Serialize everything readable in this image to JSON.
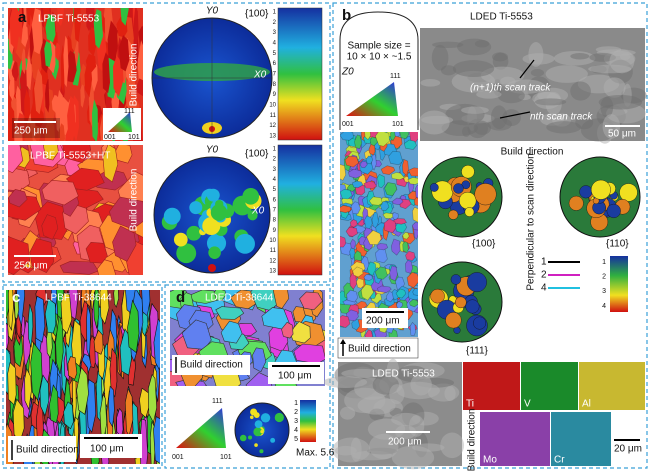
{
  "panel_a": {
    "label": "a",
    "map_1": {
      "title": "LPBF Ti-5553",
      "direction": "Build direction",
      "scale_bar": "250 μm",
      "ipf": [
        "111",
        "001",
        "101"
      ]
    },
    "pole_figure_1": {
      "y_axis": "Y0",
      "x_axis": "X0",
      "plane": "{100}"
    },
    "colorbar_1": [
      "1",
      "2",
      "3",
      "4",
      "5",
      "6",
      "7",
      "8",
      "9",
      "10",
      "11",
      "12",
      "13"
    ],
    "map_2": {
      "title": "LPBF Ti-5553+HT",
      "direction": "Build direction",
      "scale_bar": "250 μm"
    },
    "pole_figure_2": {
      "y_axis": "Y0",
      "x_axis": "X0",
      "plane": "{100}"
    },
    "colorbar_2": [
      "1",
      "2",
      "3",
      "4",
      "5",
      "6",
      "7",
      "8",
      "9",
      "10",
      "11",
      "12",
      "13"
    ]
  },
  "panel_b": {
    "label": "b",
    "sample_size_1": "Sample size =",
    "sample_size_2": "10 × 10 × ~1.5",
    "z_axis": "Z0",
    "ipf": [
      "111",
      "001",
      "101"
    ],
    "map_scale_bar": "200 μm",
    "map_direction": "Build direction",
    "sem_title": "LDED Ti-5553",
    "track_1": "(n+1)th scan track",
    "track_2": "nth scan track",
    "sem_scale_bar": "50 μm",
    "pf_direction": "Build direction",
    "pf_side": "Perpendicular to scan direction",
    "planes": [
      "{100}",
      "{110}",
      "{111}"
    ],
    "legend": [
      "1",
      "2",
      "4"
    ],
    "colorbar": [
      "1",
      "2",
      "3",
      "4"
    ],
    "eds_title": "LDED Ti-5553",
    "eds_scale_bar": "200 μm",
    "elements": [
      "Ti",
      "V",
      "Al",
      "Mo",
      "Cr"
    ],
    "eds_direction": "Build direction",
    "element_scale_bar": "20 μm"
  },
  "panel_c": {
    "label": "c",
    "title": "LPBF Ti-38644",
    "direction": "Build direction",
    "scale_bar": "100 μm"
  },
  "panel_d": {
    "label": "d",
    "title": "LDED Ti-38644",
    "direction": "Build direction",
    "scale_bar": "100 μm",
    "ipf": [
      "111",
      "001",
      "101"
    ],
    "colorbar": [
      "1",
      "2",
      "3",
      "4",
      "5"
    ],
    "max": "Max. 5.6"
  }
}
